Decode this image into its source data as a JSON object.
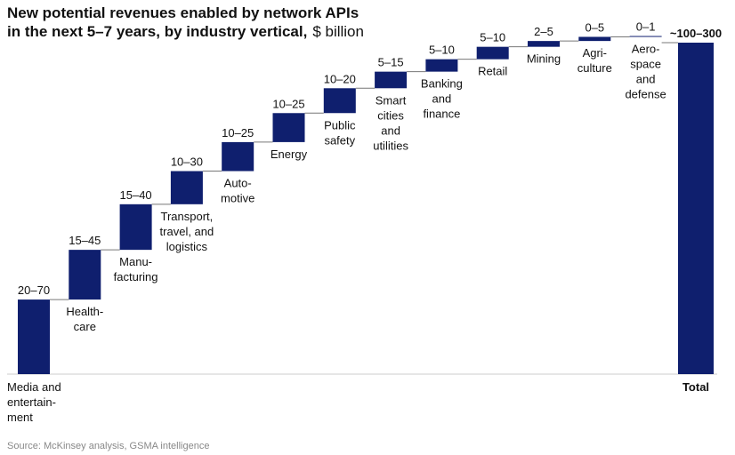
{
  "title": {
    "line1": "New potential revenues enabled by network APIs",
    "line2": "in the next 5–7 years, by industry vertical,",
    "unit": "$ billion"
  },
  "source": "Source: McKinsey analysis, GSMA intelligence",
  "colors": {
    "bar": "#0f1f6e",
    "connector": "#777777",
    "baseline": "#cccccc"
  },
  "chart_data": {
    "type": "waterfall",
    "title": "New potential revenues enabled by network APIs in the next 5–7 years, by industry vertical, $ billion",
    "value_basis": "midpoint of range, $ billion",
    "ylim": [
      0,
      200
    ],
    "categories": [
      {
        "label": "Media and entertain-ment",
        "lines": [
          "Media and",
          "entertain-",
          "ment"
        ],
        "range": "20–70",
        "low": 20,
        "high": 70,
        "value": 45
      },
      {
        "label": "Health-care",
        "lines": [
          "Health-",
          "care"
        ],
        "range": "15–45",
        "low": 15,
        "high": 45,
        "value": 30
      },
      {
        "label": "Manu-facturing",
        "lines": [
          "Manu-",
          "facturing"
        ],
        "range": "15–40",
        "low": 15,
        "high": 40,
        "value": 27.5
      },
      {
        "label": "Transport, travel, and logistics",
        "lines": [
          "Transport,",
          "travel, and",
          "logistics"
        ],
        "range": "10–30",
        "low": 10,
        "high": 30,
        "value": 20
      },
      {
        "label": "Auto-motive",
        "lines": [
          "Auto-",
          "motive"
        ],
        "range": "10–25",
        "low": 10,
        "high": 25,
        "value": 17.5
      },
      {
        "label": "Energy",
        "lines": [
          "Energy"
        ],
        "range": "10–25",
        "low": 10,
        "high": 25,
        "value": 17.5
      },
      {
        "label": "Public safety",
        "lines": [
          "Public",
          "safety"
        ],
        "range": "10–20",
        "low": 10,
        "high": 20,
        "value": 15
      },
      {
        "label": "Smart cities and utilities",
        "lines": [
          "Smart",
          "cities",
          "and",
          "utilities"
        ],
        "range": "5–15",
        "low": 5,
        "high": 15,
        "value": 10
      },
      {
        "label": "Banking and finance",
        "lines": [
          "Banking",
          "and",
          "finance"
        ],
        "range": "5–10",
        "low": 5,
        "high": 10,
        "value": 7.5
      },
      {
        "label": "Retail",
        "lines": [
          "Retail"
        ],
        "range": "5–10",
        "low": 5,
        "high": 10,
        "value": 7.5
      },
      {
        "label": "Mining",
        "lines": [
          "Mining"
        ],
        "range": "2–5",
        "low": 2,
        "high": 5,
        "value": 3.5
      },
      {
        "label": "Agri-culture",
        "lines": [
          "Agri-",
          "culture"
        ],
        "range": "0–5",
        "low": 0,
        "high": 5,
        "value": 2.5
      },
      {
        "label": "Aero-space and defense",
        "lines": [
          "Aero-",
          "space",
          "and",
          "defense"
        ],
        "range": "0–1",
        "low": 0,
        "high": 1,
        "value": 0.5
      }
    ],
    "total": {
      "label": "Total",
      "range": "~100–300",
      "low": 100,
      "high": 300,
      "value": 200
    }
  }
}
